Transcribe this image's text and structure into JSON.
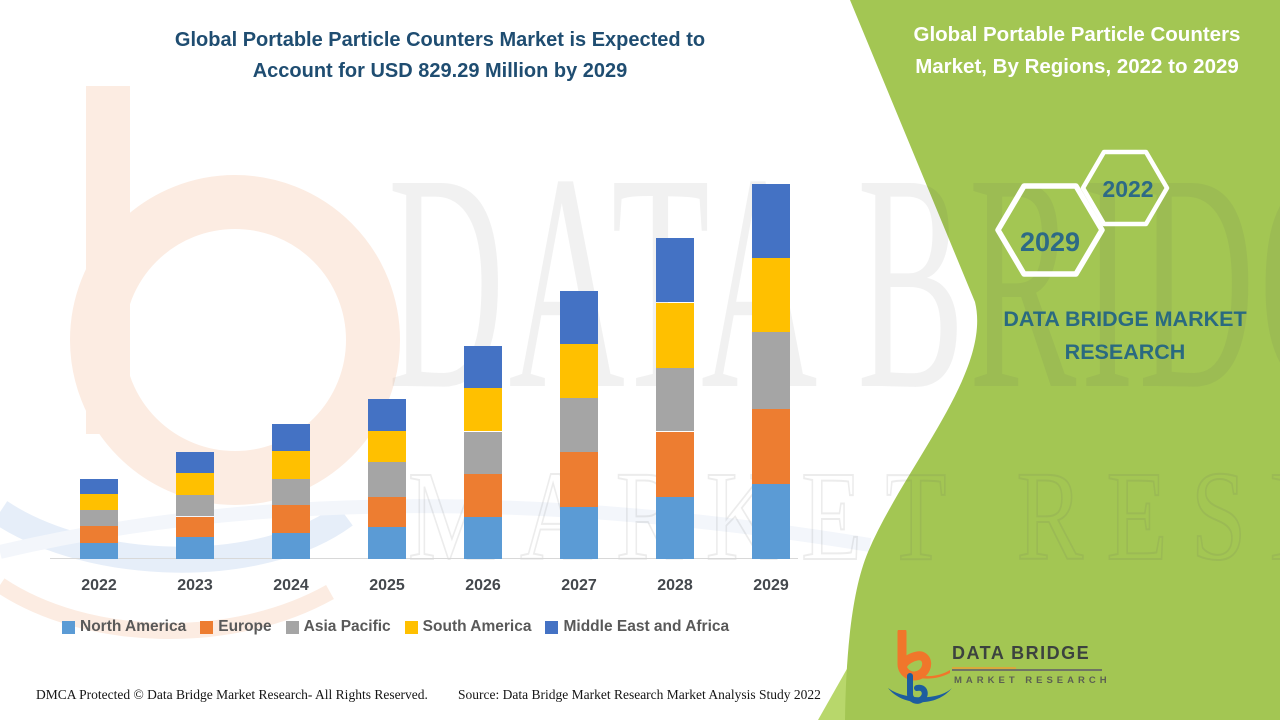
{
  "header": {
    "title_line1": "Global Portable Particle Counters Market is Expected to",
    "title_line2": "Account for USD 829.29 Million by 2029",
    "title_color": "#1f4d71"
  },
  "side_panel": {
    "title_line1": "Global Portable Particle Counters",
    "title_line2": "Market, By Regions, 2022 to 2029",
    "panel_color": "#a3c653",
    "accent_wedge_color": "#b8d76b",
    "hexagon_front_year": "2029",
    "hexagon_back_year": "2022",
    "hexagon_text_color": "#2d6a86",
    "brand_caption_line1": "DATA BRIDGE MARKET",
    "brand_caption_line2": "RESEARCH",
    "brand_caption_color": "#2a6a80"
  },
  "logo": {
    "name": "DATA BRIDGE",
    "subtitle": "MARKET RESEARCH",
    "orange": "#f0762b",
    "blue": "#1d5d9f"
  },
  "watermark": {
    "line1": "DATA BRIDGE",
    "line2": "MARKET RESEARCH"
  },
  "footer": {
    "dmca": "DMCA Protected © Data Bridge Market Research- All Rights Reserved.",
    "source": "Source: Data Bridge Market Research Market Analysis Study 2022"
  },
  "chart_data": {
    "type": "bar",
    "stacked": true,
    "title": "Global Portable Particle Counters Market is Expected to Account for USD 829.29 Million by 2029",
    "unit": "USD Million",
    "categories": [
      "2022",
      "2023",
      "2024",
      "2025",
      "2026",
      "2027",
      "2028",
      "2029"
    ],
    "series": [
      {
        "name": "North America",
        "color": "#5B9BD5",
        "values": [
          36,
          48,
          57,
          71,
          92,
          114,
          138,
          166
        ]
      },
      {
        "name": "Europe",
        "color": "#ED7D31",
        "values": [
          37,
          46,
          63,
          66,
          97,
          122,
          144,
          166
        ]
      },
      {
        "name": "Asia Pacific",
        "color": "#A5A5A5",
        "values": [
          35,
          48,
          57,
          78,
          93,
          120,
          141,
          170
        ]
      },
      {
        "name": "South America",
        "color": "#FFC000",
        "values": [
          35,
          49,
          62,
          68,
          96,
          120,
          144,
          163
        ]
      },
      {
        "name": "Middle East and Africa",
        "color": "#4472C4",
        "values": [
          33,
          46,
          59,
          70,
          93,
          116,
          142,
          164.29
        ]
      }
    ],
    "totals": [
      176,
      237,
      298,
      353,
      471,
      592,
      709,
      829.29
    ],
    "ylim": [
      0,
      850
    ],
    "y_axis_visible": false,
    "grid": false,
    "axis_color": "#d8d8d8",
    "legend_position": "bottom",
    "xlabel": "",
    "ylabel": ""
  }
}
